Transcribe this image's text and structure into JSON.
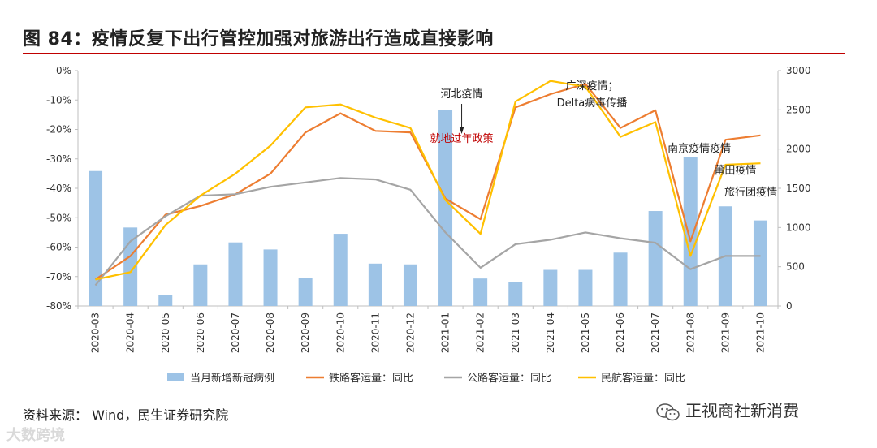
{
  "title": "图 84：疫情反复下出行管控加强对旅游出行造成直接影响",
  "source": "资料来源： Wind，民生证券研究院",
  "wechat_name": "正视商社新消费",
  "watermark": "大数跨境",
  "colors": {
    "bar": "#9dc3e6",
    "rail": "#ed7d31",
    "road": "#a5a5a5",
    "air": "#ffc000",
    "rule": "#c00000"
  },
  "chart_data": {
    "type": "bar+line",
    "categories": [
      "2020-03",
      "2020-04",
      "2020-05",
      "2020-06",
      "2020-07",
      "2020-08",
      "2020-09",
      "2020-10",
      "2020-11",
      "2020-12",
      "2021-01",
      "2021-02",
      "2021-03",
      "2021-04",
      "2021-05",
      "2021-06",
      "2021-07",
      "2021-08",
      "2021-09",
      "2021-10"
    ],
    "left_axis": {
      "min": -80,
      "max": 0,
      "step": 10,
      "ticks": [
        "0%",
        "-10%",
        "-20%",
        "-30%",
        "-40%",
        "-50%",
        "-60%",
        "-70%",
        "-80%"
      ]
    },
    "right_axis": {
      "min": 0,
      "max": 3000,
      "step": 500,
      "ticks": [
        "3000",
        "2500",
        "2000",
        "1500",
        "1000",
        "500",
        "0"
      ]
    },
    "bars": {
      "name": "当月新增新冠病例",
      "axis": "right",
      "values": [
        1720,
        1000,
        140,
        530,
        810,
        720,
        360,
        920,
        540,
        530,
        2500,
        350,
        310,
        460,
        460,
        680,
        1210,
        1900,
        1270,
        1090
      ]
    },
    "series": [
      {
        "name": "铁路客运量：同比",
        "axis": "left",
        "values": [
          -71,
          -63,
          -49,
          -46,
          -42,
          -35,
          -21,
          -14.5,
          -20.5,
          -21,
          -43.5,
          -50.5,
          -12.5,
          -8,
          -4.5,
          -19.5,
          -13.5,
          -58,
          -23.5,
          -22
        ]
      },
      {
        "name": "公路客运量：同比",
        "axis": "left",
        "values": [
          -73,
          -58,
          -49.5,
          -42.5,
          -42,
          -39.5,
          -38,
          -36.5,
          -37,
          -40.5,
          -55,
          -67,
          -59,
          -57.5,
          -55,
          -57,
          -58.5,
          -67.5,
          -63,
          -63
        ]
      },
      {
        "name": "民航客运量：同比",
        "axis": "left",
        "values": [
          -71,
          -68.5,
          -52.5,
          -42.5,
          -35,
          -25.5,
          -12.5,
          -11.5,
          -16,
          -19.5,
          -44,
          -55.5,
          -10.5,
          -3.5,
          -5.5,
          -22.5,
          -17.5,
          -63,
          -32,
          -31.5
        ]
      }
    ],
    "annotations": [
      {
        "text": "河北疫情",
        "category": "2021-01",
        "color": "#222222"
      },
      {
        "text": "就地过年政策",
        "category": "2021-01",
        "color": "#c00000"
      },
      {
        "text": "广深疫情；",
        "category": "2021-05",
        "color": "#222222"
      },
      {
        "text": "Delta病毒传播",
        "category": "2021-05",
        "color": "#222222"
      },
      {
        "text": "南京疫情疫情",
        "category": "2021-07",
        "color": "#222222"
      },
      {
        "text": "莆田疫情",
        "category": "2021-09",
        "color": "#222222"
      },
      {
        "text": "旅行团疫情",
        "category": "2021-10",
        "color": "#222222"
      }
    ]
  }
}
